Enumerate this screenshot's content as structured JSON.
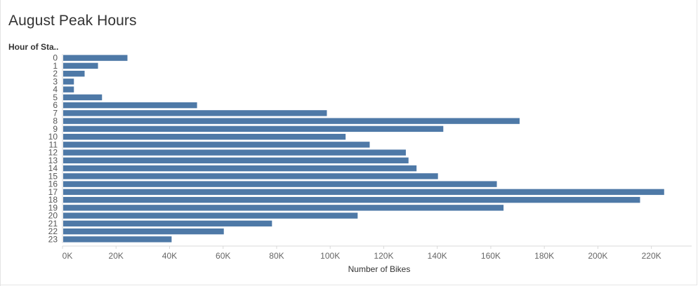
{
  "chart_data": {
    "type": "bar",
    "orientation": "horizontal",
    "title": "August Peak Hours",
    "ylabel": "Hour of Sta..",
    "xlabel": "Number of Bikes",
    "categories": [
      "0",
      "1",
      "2",
      "3",
      "4",
      "5",
      "6",
      "7",
      "8",
      "9",
      "10",
      "11",
      "12",
      "13",
      "14",
      "15",
      "16",
      "17",
      "18",
      "19",
      "20",
      "21",
      "22",
      "23"
    ],
    "values": [
      24000,
      13000,
      8000,
      4000,
      4000,
      14500,
      50000,
      98500,
      170500,
      142000,
      105500,
      114500,
      128000,
      129000,
      132000,
      140000,
      162000,
      224500,
      215500,
      164500,
      110000,
      78000,
      60000,
      40500
    ],
    "xlim": [
      0,
      230000
    ],
    "xticks": [
      0,
      20000,
      40000,
      60000,
      80000,
      100000,
      120000,
      140000,
      160000,
      180000,
      200000,
      220000
    ],
    "xtick_labels": [
      "0K",
      "20K",
      "40K",
      "60K",
      "80K",
      "100K",
      "120K",
      "140K",
      "160K",
      "180K",
      "200K",
      "220K"
    ],
    "bar_color": "#4e79a7",
    "grid": false
  }
}
